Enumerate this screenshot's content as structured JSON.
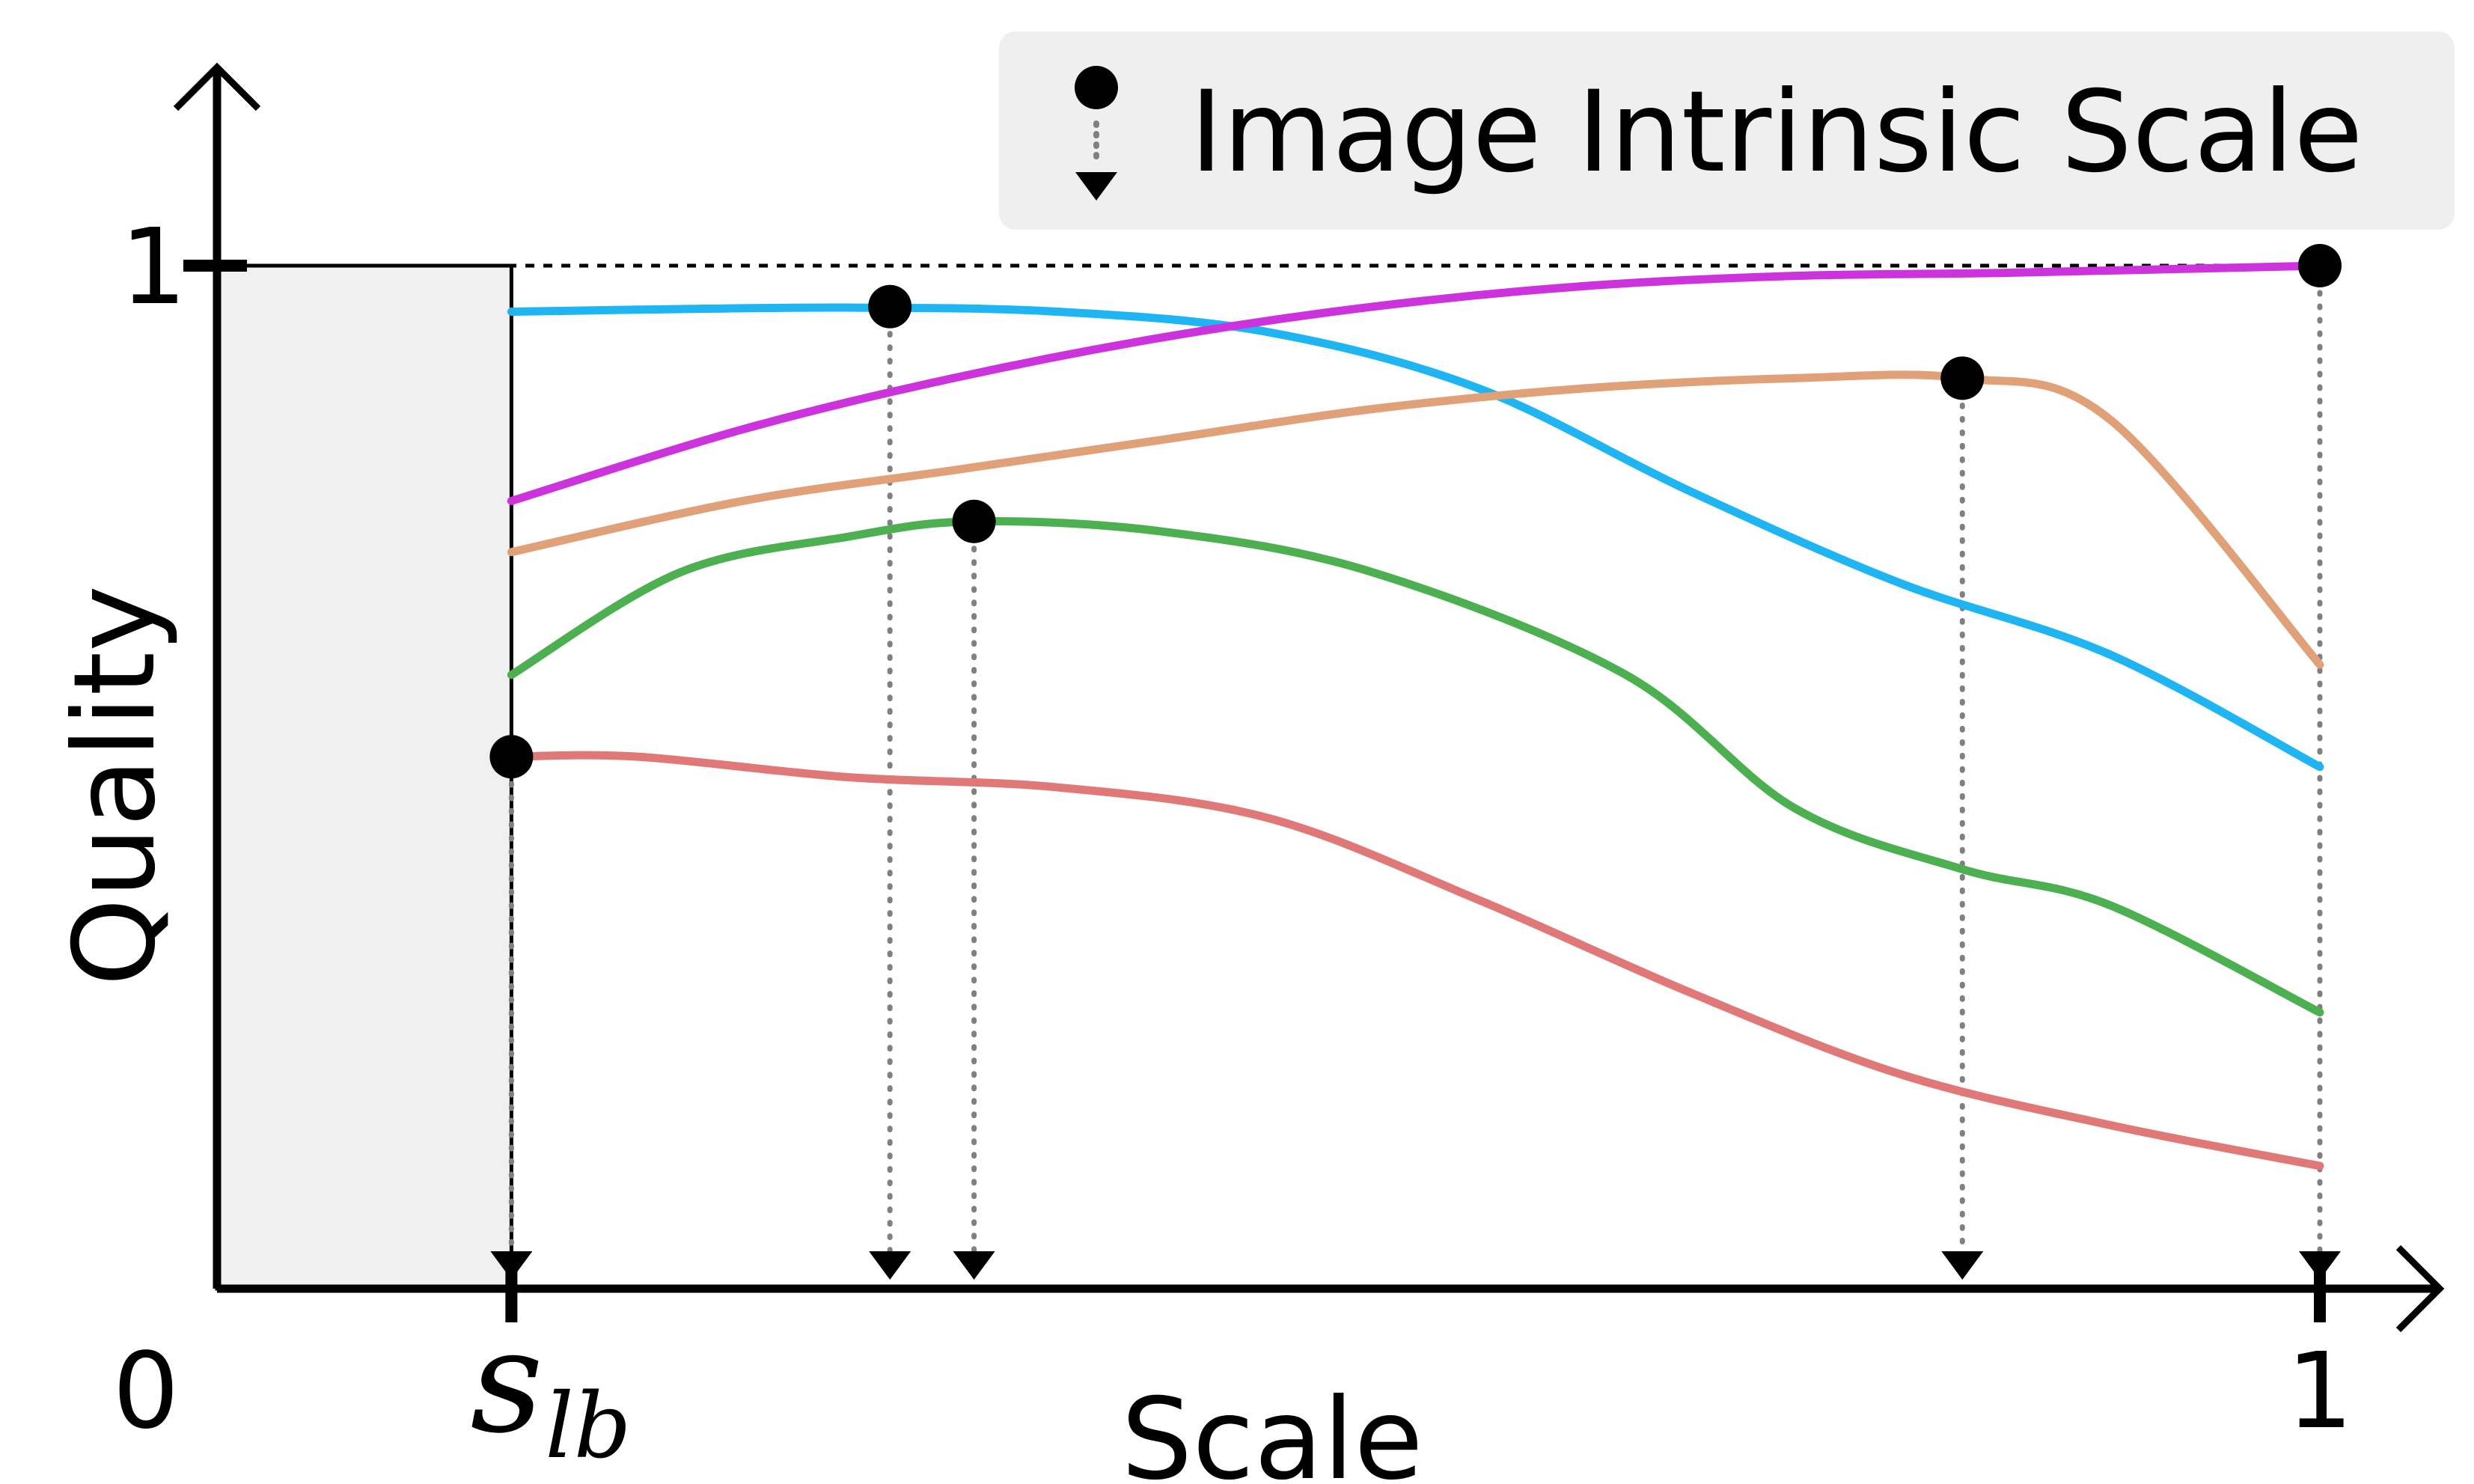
{
  "chart_data": {
    "type": "line",
    "xlabel": "Scale",
    "ylabel": "Quality",
    "xlim": [
      0,
      1
    ],
    "ylim": [
      0,
      1
    ],
    "x_ticks": [
      {
        "value": 0,
        "label": "0"
      },
      {
        "value": 0.14,
        "label": "s",
        "sub": "lb"
      },
      {
        "value": 1,
        "label": "1"
      }
    ],
    "y_ticks": [
      {
        "value": 1,
        "label": "1"
      }
    ],
    "reference_line": {
      "y": 1,
      "style": "dashed"
    },
    "shaded_region": {
      "x": [
        0,
        0.14
      ],
      "y": [
        0,
        1
      ]
    },
    "legend": {
      "position": "top-right",
      "label": "Image Intrinsic Scale"
    },
    "series": [
      {
        "color": "#1fb4f2",
        "intrinsic_scale": {
          "x": 0.32,
          "y": 0.96
        },
        "points": [
          [
            0.14,
            0.955
          ],
          [
            0.2,
            0.957
          ],
          [
            0.3,
            0.959
          ],
          [
            0.4,
            0.955
          ],
          [
            0.5,
            0.935
          ],
          [
            0.6,
            0.88
          ],
          [
            0.7,
            0.78
          ],
          [
            0.8,
            0.69
          ],
          [
            0.9,
            0.62
          ],
          [
            1.0,
            0.51
          ]
        ]
      },
      {
        "color": "#cc33dd",
        "intrinsic_scale": {
          "x": 1.0,
          "y": 1.0
        },
        "points": [
          [
            0.14,
            0.77
          ],
          [
            0.25,
            0.84
          ],
          [
            0.35,
            0.89
          ],
          [
            0.45,
            0.93
          ],
          [
            0.55,
            0.96
          ],
          [
            0.65,
            0.98
          ],
          [
            0.75,
            0.99
          ],
          [
            0.85,
            0.993
          ],
          [
            1.0,
            1.0
          ]
        ]
      },
      {
        "color": "#e0a078",
        "intrinsic_scale": {
          "x": 0.83,
          "y": 0.89
        },
        "points": [
          [
            0.14,
            0.72
          ],
          [
            0.25,
            0.77
          ],
          [
            0.35,
            0.8
          ],
          [
            0.45,
            0.83
          ],
          [
            0.55,
            0.86
          ],
          [
            0.65,
            0.88
          ],
          [
            0.75,
            0.89
          ],
          [
            0.83,
            0.89
          ],
          [
            0.9,
            0.85
          ],
          [
            1.0,
            0.61
          ]
        ]
      },
      {
        "color": "#4caf50",
        "intrinsic_scale": {
          "x": 0.36,
          "y": 0.75
        },
        "points": [
          [
            0.14,
            0.6
          ],
          [
            0.22,
            0.7
          ],
          [
            0.3,
            0.735
          ],
          [
            0.36,
            0.75
          ],
          [
            0.45,
            0.74
          ],
          [
            0.55,
            0.7
          ],
          [
            0.67,
            0.6
          ],
          [
            0.75,
            0.47
          ],
          [
            0.83,
            0.41
          ],
          [
            0.9,
            0.375
          ],
          [
            1.0,
            0.27
          ]
        ]
      },
      {
        "color": "#e07878",
        "intrinsic_scale": {
          "x": 0.14,
          "y": 0.52
        },
        "points": [
          [
            0.14,
            0.52
          ],
          [
            0.2,
            0.52
          ],
          [
            0.3,
            0.5
          ],
          [
            0.4,
            0.49
          ],
          [
            0.5,
            0.46
          ],
          [
            0.6,
            0.38
          ],
          [
            0.7,
            0.29
          ],
          [
            0.8,
            0.21
          ],
          [
            0.9,
            0.16
          ],
          [
            1.0,
            0.12
          ]
        ]
      }
    ]
  }
}
